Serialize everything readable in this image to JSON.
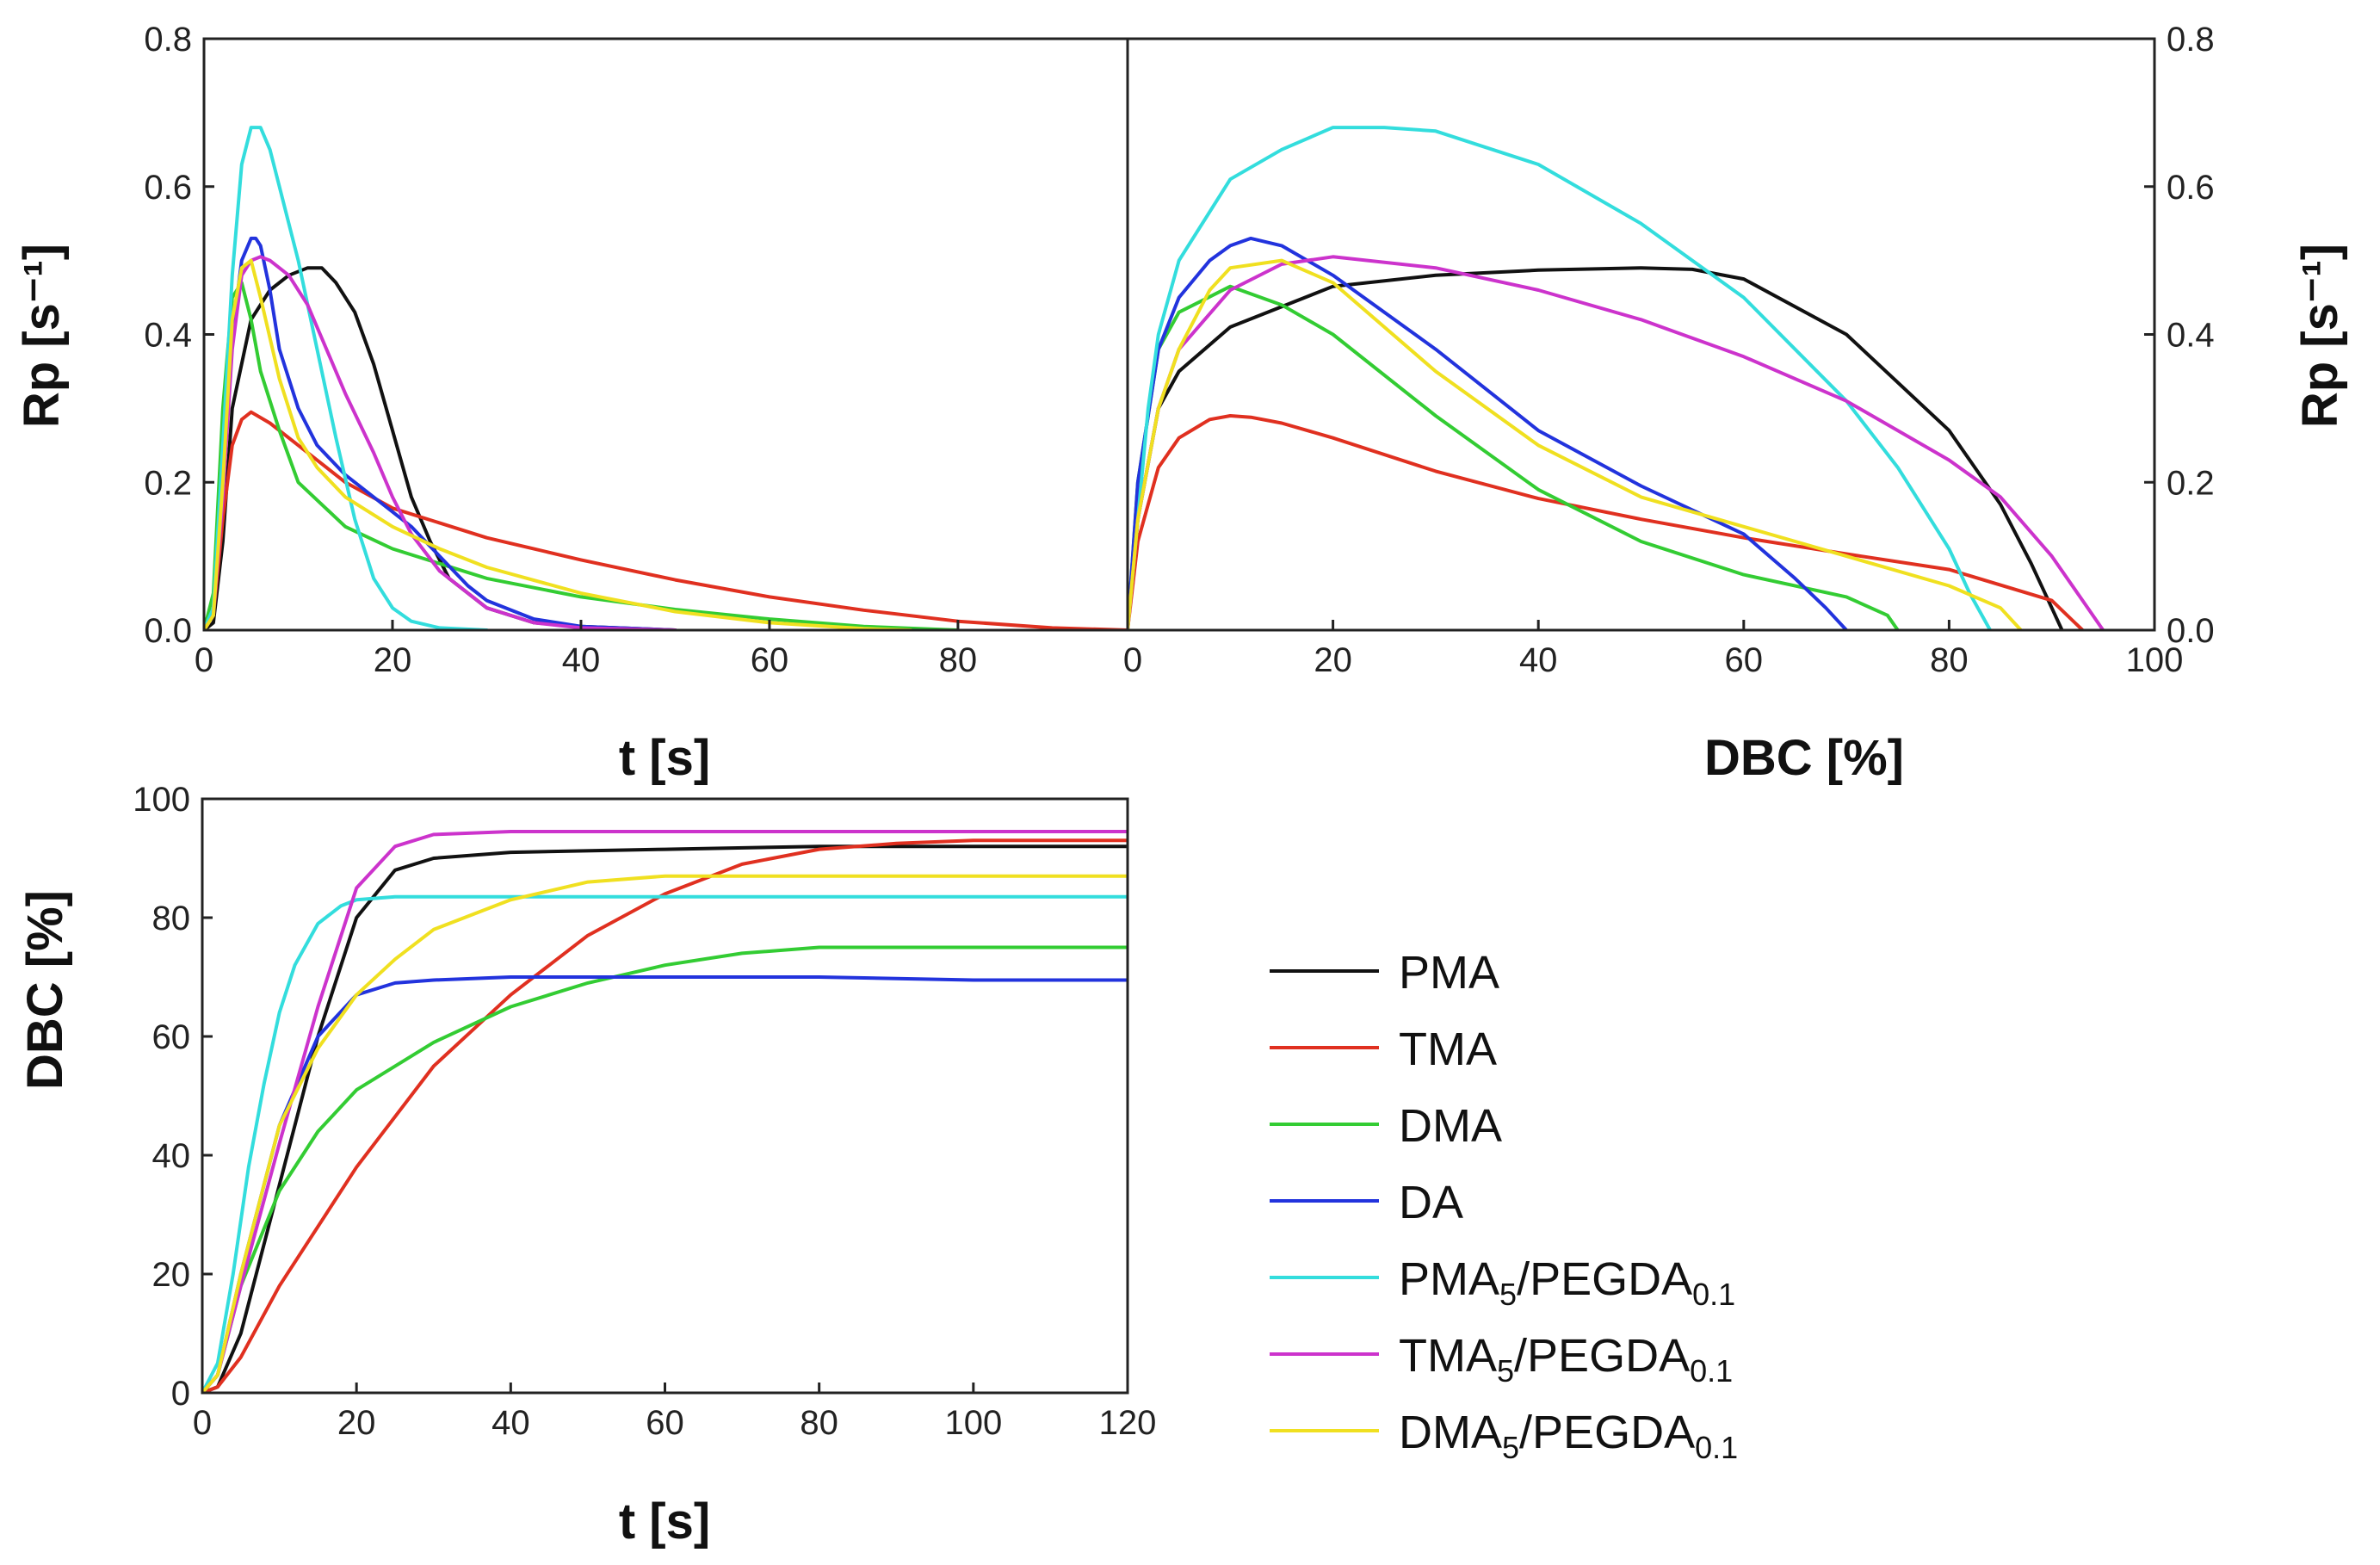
{
  "chart_data": [
    {
      "id": "rp_vs_t",
      "type": "line",
      "xlabel": "t [s]",
      "ylabel": "Rp [s⁻¹]",
      "xlim": [
        0,
        98
      ],
      "ylim": [
        0,
        0.8
      ],
      "xticks": [
        "0",
        "20",
        "40",
        "60",
        "80"
      ],
      "yticks": [
        "0.0",
        "0.2",
        "0.4",
        "0.6",
        "0.8"
      ],
      "series": [
        {
          "name": "PMA",
          "color": "#111111",
          "x": [
            0,
            1,
            2,
            3,
            5,
            7,
            9,
            11,
            12.5,
            14,
            16,
            18,
            20,
            22,
            24,
            26,
            30,
            35,
            40,
            50
          ],
          "y": [
            0,
            0.01,
            0.12,
            0.3,
            0.42,
            0.46,
            0.48,
            0.49,
            0.49,
            0.47,
            0.43,
            0.36,
            0.27,
            0.18,
            0.12,
            0.07,
            0.03,
            0.01,
            0.005,
            0
          ]
        },
        {
          "name": "TMA",
          "color": "#e03020",
          "x": [
            0,
            1,
            2,
            3,
            4,
            5,
            7,
            10,
            15,
            20,
            30,
            40,
            50,
            60,
            70,
            80,
            90,
            98
          ],
          "y": [
            0,
            0.02,
            0.15,
            0.25,
            0.285,
            0.295,
            0.28,
            0.25,
            0.2,
            0.165,
            0.125,
            0.095,
            0.068,
            0.045,
            0.027,
            0.012,
            0.003,
            0
          ]
        },
        {
          "name": "DMA",
          "color": "#33cc33",
          "x": [
            0,
            1,
            2,
            3,
            4,
            5,
            6,
            8,
            10,
            15,
            20,
            25,
            30,
            40,
            50,
            60,
            70,
            80
          ],
          "y": [
            0,
            0.05,
            0.3,
            0.45,
            0.47,
            0.42,
            0.35,
            0.27,
            0.2,
            0.14,
            0.11,
            0.09,
            0.07,
            0.045,
            0.028,
            0.015,
            0.005,
            0
          ]
        },
        {
          "name": "DA",
          "color": "#2233dd",
          "x": [
            0,
            1,
            2,
            3,
            4,
            5,
            5.5,
            6,
            7,
            8,
            10,
            12,
            15,
            18,
            20,
            22,
            25,
            28,
            30,
            35,
            40,
            50
          ],
          "y": [
            0,
            0.02,
            0.2,
            0.4,
            0.5,
            0.53,
            0.53,
            0.52,
            0.46,
            0.38,
            0.3,
            0.25,
            0.21,
            0.18,
            0.16,
            0.14,
            0.1,
            0.06,
            0.04,
            0.015,
            0.005,
            0
          ]
        },
        {
          "name": "PMA5/PEGDA0.1",
          "color": "#33dddd",
          "x": [
            0,
            1,
            2,
            3,
            4,
            5,
            6,
            7,
            8,
            10,
            12,
            14,
            16,
            18,
            20,
            22,
            25,
            30
          ],
          "y": [
            0,
            0.03,
            0.25,
            0.48,
            0.63,
            0.68,
            0.68,
            0.65,
            0.6,
            0.5,
            0.38,
            0.26,
            0.15,
            0.07,
            0.03,
            0.012,
            0.003,
            0
          ]
        },
        {
          "name": "TMA5/PEGDA0.1",
          "color": "#cc33cc",
          "x": [
            0,
            1,
            2,
            3,
            4,
            5,
            6,
            7,
            9,
            11,
            13,
            15,
            18,
            20,
            22,
            25,
            30,
            35,
            40,
            50
          ],
          "y": [
            0,
            0.02,
            0.18,
            0.38,
            0.48,
            0.5,
            0.505,
            0.5,
            0.48,
            0.44,
            0.38,
            0.32,
            0.24,
            0.18,
            0.13,
            0.08,
            0.03,
            0.01,
            0.003,
            0
          ]
        },
        {
          "name": "DMA5/PEGDA0.1",
          "color": "#f0e020",
          "x": [
            0,
            1,
            2,
            3,
            4,
            5,
            6,
            8,
            10,
            12,
            15,
            20,
            25,
            30,
            40,
            50,
            60,
            70,
            75
          ],
          "y": [
            0,
            0.02,
            0.2,
            0.42,
            0.49,
            0.5,
            0.45,
            0.34,
            0.26,
            0.22,
            0.18,
            0.14,
            0.11,
            0.085,
            0.05,
            0.025,
            0.01,
            0.002,
            0
          ]
        }
      ]
    },
    {
      "id": "rp_vs_dbc",
      "type": "line",
      "xlabel": "DBC [%]",
      "ylabel": "Rp [s⁻¹]",
      "xlim": [
        0,
        100
      ],
      "ylim": [
        0,
        0.8
      ],
      "xticks": [
        "0",
        "20",
        "40",
        "60",
        "80",
        "100"
      ],
      "yticks": [
        "0.0",
        "0.2",
        "0.4",
        "0.6",
        "0.8"
      ],
      "series": [
        {
          "name": "PMA",
          "color": "#111111",
          "x": [
            0,
            1,
            3,
            5,
            10,
            20,
            30,
            40,
            50,
            55,
            60,
            70,
            80,
            85,
            88,
            90,
            91
          ],
          "y": [
            0,
            0.15,
            0.3,
            0.35,
            0.41,
            0.465,
            0.48,
            0.487,
            0.49,
            0.488,
            0.475,
            0.4,
            0.27,
            0.17,
            0.09,
            0.03,
            0
          ]
        },
        {
          "name": "TMA",
          "color": "#e03020",
          "x": [
            0,
            1,
            3,
            5,
            8,
            10,
            12,
            15,
            20,
            30,
            40,
            50,
            60,
            70,
            80,
            90,
            93
          ],
          "y": [
            0,
            0.12,
            0.22,
            0.26,
            0.285,
            0.29,
            0.288,
            0.28,
            0.26,
            0.215,
            0.178,
            0.15,
            0.125,
            0.103,
            0.082,
            0.04,
            0
          ]
        },
        {
          "name": "DMA",
          "color": "#33cc33",
          "x": [
            0,
            1,
            3,
            5,
            10,
            15,
            20,
            30,
            40,
            50,
            60,
            70,
            74,
            75
          ],
          "y": [
            0,
            0.2,
            0.38,
            0.43,
            0.465,
            0.44,
            0.4,
            0.29,
            0.19,
            0.12,
            0.075,
            0.045,
            0.02,
            0
          ]
        },
        {
          "name": "DA",
          "color": "#2233dd",
          "x": [
            0,
            1,
            3,
            5,
            8,
            10,
            12,
            15,
            20,
            30,
            40,
            50,
            60,
            65,
            68,
            70
          ],
          "y": [
            0,
            0.2,
            0.38,
            0.45,
            0.5,
            0.52,
            0.53,
            0.52,
            0.48,
            0.38,
            0.27,
            0.195,
            0.13,
            0.07,
            0.03,
            0
          ]
        },
        {
          "name": "PMA5/PEGDA0.1",
          "color": "#33dddd",
          "x": [
            0,
            1,
            2,
            3,
            5,
            10,
            15,
            20,
            25,
            30,
            40,
            50,
            60,
            70,
            75,
            80,
            82,
            84
          ],
          "y": [
            0,
            0.15,
            0.3,
            0.4,
            0.5,
            0.61,
            0.65,
            0.68,
            0.68,
            0.675,
            0.63,
            0.55,
            0.45,
            0.31,
            0.22,
            0.11,
            0.05,
            0
          ]
        },
        {
          "name": "TMA5/PEGDA0.1",
          "color": "#cc33cc",
          "x": [
            0,
            1,
            3,
            5,
            10,
            15,
            20,
            30,
            40,
            50,
            60,
            70,
            80,
            85,
            90,
            93,
            95
          ],
          "y": [
            0,
            0.15,
            0.3,
            0.38,
            0.46,
            0.495,
            0.505,
            0.49,
            0.46,
            0.42,
            0.37,
            0.31,
            0.23,
            0.18,
            0.1,
            0.04,
            0
          ]
        },
        {
          "name": "DMA5/PEGDA0.1",
          "color": "#f0e020",
          "x": [
            0,
            1,
            3,
            5,
            8,
            10,
            15,
            20,
            30,
            40,
            50,
            60,
            70,
            80,
            85,
            87
          ],
          "y": [
            0,
            0.15,
            0.3,
            0.38,
            0.46,
            0.49,
            0.5,
            0.47,
            0.35,
            0.25,
            0.18,
            0.14,
            0.1,
            0.06,
            0.03,
            0
          ]
        }
      ]
    },
    {
      "id": "dbc_vs_t",
      "type": "line",
      "xlabel": "t [s]",
      "ylabel": "DBC [%]",
      "xlim": [
        0,
        120
      ],
      "ylim": [
        0,
        100
      ],
      "xticks": [
        "0",
        "20",
        "40",
        "60",
        "80",
        "100",
        "120"
      ],
      "yticks": [
        "0",
        "20",
        "40",
        "60",
        "80",
        "100"
      ],
      "series": [
        {
          "name": "PMA",
          "color": "#111111",
          "x": [
            0,
            2,
            5,
            10,
            15,
            20,
            25,
            30,
            40,
            60,
            80,
            100,
            120
          ],
          "y": [
            0,
            1,
            10,
            35,
            60,
            80,
            88,
            90,
            91,
            91.5,
            92,
            92,
            92
          ]
        },
        {
          "name": "TMA",
          "color": "#e03020",
          "x": [
            0,
            2,
            5,
            10,
            20,
            30,
            40,
            50,
            60,
            70,
            80,
            90,
            100,
            110,
            120
          ],
          "y": [
            0,
            1,
            6,
            18,
            38,
            55,
            67,
            77,
            84,
            89,
            91.5,
            92.5,
            93,
            93,
            93
          ]
        },
        {
          "name": "DMA",
          "color": "#33cc33",
          "x": [
            0,
            2,
            5,
            10,
            15,
            20,
            30,
            40,
            50,
            60,
            70,
            80,
            90,
            100,
            120
          ],
          "y": [
            0,
            3,
            18,
            34,
            44,
            51,
            59,
            65,
            69,
            72,
            74,
            75,
            75,
            75,
            75
          ]
        },
        {
          "name": "DA",
          "color": "#2233dd",
          "x": [
            0,
            2,
            5,
            8,
            10,
            15,
            20,
            25,
            30,
            40,
            60,
            80,
            100,
            120
          ],
          "y": [
            0,
            3,
            20,
            35,
            45,
            60,
            67,
            69,
            69.5,
            70,
            70,
            70,
            69.5,
            69.5
          ]
        },
        {
          "name": "PMA5/PEGDA0.1",
          "color": "#33dddd",
          "x": [
            0,
            2,
            4,
            6,
            8,
            10,
            12,
            15,
            18,
            20,
            25,
            30,
            60,
            120
          ],
          "y": [
            0,
            5,
            20,
            38,
            52,
            64,
            72,
            79,
            82,
            83,
            83.5,
            83.5,
            83.5,
            83.5
          ]
        },
        {
          "name": "TMA5/PEGDA0.1",
          "color": "#cc33cc",
          "x": [
            0,
            2,
            5,
            10,
            15,
            20,
            25,
            30,
            40,
            60,
            80,
            100,
            120
          ],
          "y": [
            0,
            3,
            18,
            42,
            65,
            85,
            92,
            94,
            94.5,
            94.5,
            94.5,
            94.5,
            94.5
          ]
        },
        {
          "name": "DMA5/PEGDA0.1",
          "color": "#f0e020",
          "x": [
            0,
            2,
            5,
            10,
            15,
            20,
            25,
            30,
            40,
            50,
            60,
            80,
            100,
            120
          ],
          "y": [
            0,
            3,
            20,
            45,
            58,
            67,
            73,
            78,
            83,
            86,
            87,
            87,
            87,
            87
          ]
        }
      ]
    }
  ],
  "legend": [
    {
      "base": "PMA",
      "sub1": "",
      "mid": "",
      "sub2": "",
      "color": "#111111"
    },
    {
      "base": "TMA",
      "sub1": "",
      "mid": "",
      "sub2": "",
      "color": "#e03020"
    },
    {
      "base": "DMA",
      "sub1": "",
      "mid": "",
      "sub2": "",
      "color": "#33cc33"
    },
    {
      "base": "DA",
      "sub1": "",
      "mid": "",
      "sub2": "",
      "color": "#2233dd"
    },
    {
      "base": "PMA",
      "sub1": "5",
      "mid": "/PEGDA",
      "sub2": "0.1",
      "color": "#33dddd"
    },
    {
      "base": "TMA",
      "sub1": "5",
      "mid": "/PEGDA",
      "sub2": "0.1",
      "color": "#cc33cc"
    },
    {
      "base": "DMA",
      "sub1": "5",
      "mid": "/PEGDA",
      "sub2": "0.1",
      "color": "#f0e020"
    }
  ]
}
